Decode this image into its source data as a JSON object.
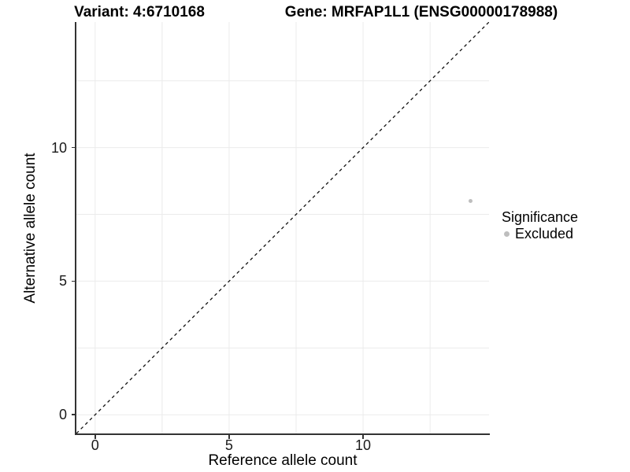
{
  "titles": {
    "variant": "Variant: 4:6710168",
    "gene": "Gene: MRFAP1L1 (ENSG00000178988)"
  },
  "axes": {
    "x_title": "Reference allele count",
    "y_title": "Alternative allele count"
  },
  "legend": {
    "title": "Significance",
    "items": [
      {
        "label": "Excluded",
        "marker": "circle",
        "color": "#bebebe"
      }
    ]
  },
  "colors": {
    "grid": "#ebebeb",
    "axis_line": "#333333",
    "axis_text": "#1a1a1a",
    "title_text": "#000000",
    "point": "#bebebe",
    "reference_line": "#111111"
  },
  "chart_data": {
    "type": "scatter",
    "title": "Variant: 4:6710168 | Gene: MRFAP1L1 (ENSG00000178988)",
    "xlabel": "Reference allele count",
    "ylabel": "Alternative allele count",
    "xlim": [
      -0.7,
      14.7
    ],
    "ylim": [
      -0.7,
      14.7
    ],
    "x_ticks": [
      0,
      5,
      10
    ],
    "y_ticks": [
      0,
      5,
      10
    ],
    "grid": true,
    "grid_values": [
      0,
      2.5,
      5,
      7.5,
      10,
      12.5
    ],
    "legend_position": "right-center",
    "series": [
      {
        "name": "Excluded",
        "color": "#bebebe",
        "points": [
          {
            "x": 14,
            "y": 8
          }
        ]
      }
    ],
    "reference_line": {
      "type": "identity y=x",
      "style": "dashed",
      "color": "#111111",
      "from": [
        -0.7,
        -0.7
      ],
      "to": [
        14.7,
        14.7
      ]
    }
  }
}
